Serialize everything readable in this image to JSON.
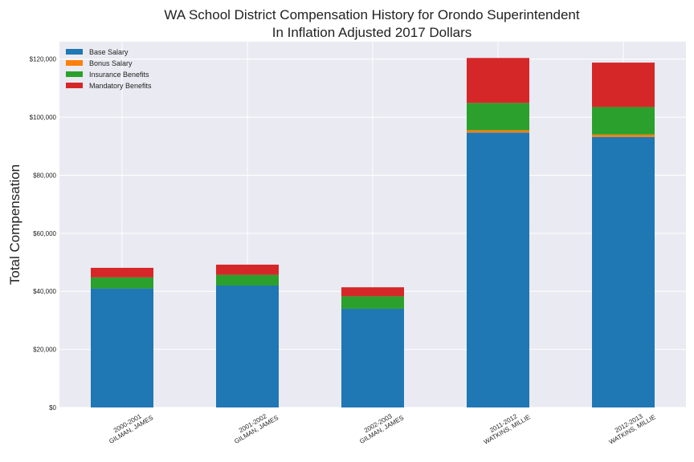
{
  "chart_data": {
    "type": "bar",
    "stacked": true,
    "title": "WA School District Compensation History for Orondo Superintendent",
    "subtitle": "In Inflation Adjusted 2017 Dollars",
    "xlabel": "",
    "ylabel": "Total Compensation",
    "ylim": [
      0,
      126000
    ],
    "yticks": [
      0,
      20000,
      40000,
      60000,
      80000,
      100000,
      120000
    ],
    "ytick_labels": [
      "$0",
      "$20,000",
      "$40,000",
      "$60,000",
      "$80,000",
      "$100,000",
      "$120,000"
    ],
    "categories": [
      [
        "2000-2001",
        "GILMAN, JAMES"
      ],
      [
        "2001-2002",
        "GILMAN, JAMES"
      ],
      [
        "2002-2003",
        "GILMAN, JAMES"
      ],
      [
        "2011-2012",
        "WATKINS, MILLIE"
      ],
      [
        "2012-2013",
        "WATKINS, MILLIE"
      ]
    ],
    "series": [
      {
        "name": "Base Salary",
        "color": "#1f77b4",
        "values": [
          41000,
          42000,
          34000,
          94700,
          93200
        ]
      },
      {
        "name": "Bonus Salary",
        "color": "#ff7f0e",
        "values": [
          0,
          0,
          0,
          800,
          800
        ]
      },
      {
        "name": "Insurance Benefits",
        "color": "#2ca02c",
        "values": [
          3800,
          3700,
          4300,
          9400,
          9500
        ]
      },
      {
        "name": "Mandatory Benefits",
        "color": "#d62728",
        "values": [
          3300,
          3500,
          3100,
          15500,
          15300
        ]
      }
    ],
    "grid": true,
    "legend_position": "top-left",
    "background_color": "#eaeaf2"
  }
}
